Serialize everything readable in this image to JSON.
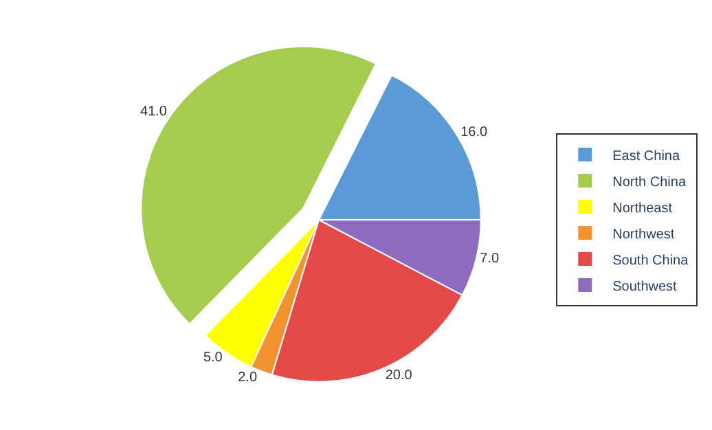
{
  "chart_data": {
    "type": "pie",
    "categories": [
      "East China",
      "North China",
      "Northeast",
      "Northwest",
      "South China",
      "Southwest"
    ],
    "values": [
      16,
      41,
      5,
      2,
      20,
      7
    ],
    "value_labels": [
      "16.0",
      "41.0",
      "5.0",
      "2.0",
      "20.0",
      "7.0"
    ],
    "colors": [
      "#5b9bd5",
      "#a5cc4f",
      "#ffff00",
      "#f39230",
      "#e24a4a",
      "#8e6bbf"
    ],
    "legend": "right"
  }
}
